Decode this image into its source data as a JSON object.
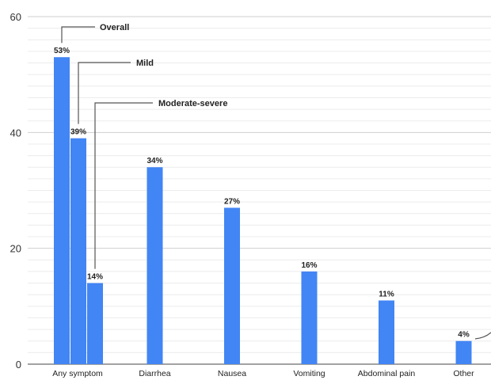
{
  "chart_data": {
    "type": "bar",
    "title": "",
    "xlabel": "",
    "ylabel": "",
    "ylim": [
      0,
      60
    ],
    "yticks": [
      0,
      20,
      40,
      60
    ],
    "minor_grid_step": 2,
    "grid": true,
    "bar_color": "#4285f4",
    "categories": [
      "Any symptom",
      "Diarrhea",
      "Nausea",
      "Vomiting",
      "Abdominal pain",
      "Other"
    ],
    "any_symptom_breakdown": [
      {
        "name": "Overall",
        "value": 53,
        "label": "53%"
      },
      {
        "name": "Mild",
        "value": 39,
        "label": "39%"
      },
      {
        "name": "Moderate-severe",
        "value": 14,
        "label": "14%"
      }
    ],
    "values": [
      null,
      34,
      27,
      16,
      11,
      4
    ],
    "labels": [
      null,
      "34%",
      "27%",
      "16%",
      "11%",
      "4%"
    ]
  }
}
